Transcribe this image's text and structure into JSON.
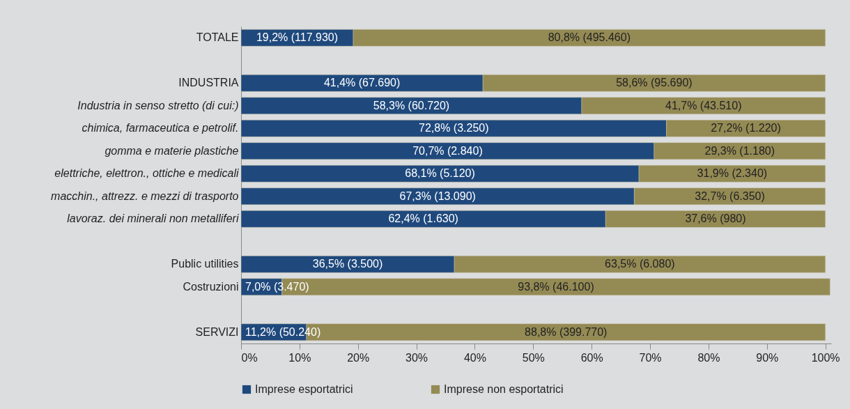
{
  "chart_data": {
    "type": "bar",
    "orientation": "horizontal",
    "stacked": true,
    "categories": [
      "TOTALE",
      null,
      "INDUSTRIA",
      "Industria in senso stretto (di cui:)",
      "chimica, farmaceutica e petrolif.",
      "gomma e materie plastiche",
      "elettriche, elettron., ottiche e medicali",
      "macchin., attrezz. e mezzi di trasporto",
      "lavoraz. dei minerali non metalliferi",
      null,
      "Public utilities",
      "Costruzioni",
      null,
      "SERVIZI"
    ],
    "series": [
      {
        "name": "Imprese esportatrici",
        "color": "#1f497d",
        "values": [
          19.2,
          null,
          41.4,
          58.3,
          72.8,
          70.7,
          68.1,
          67.3,
          62.4,
          null,
          36.5,
          7.0,
          null,
          11.2
        ],
        "value_labels": [
          "19,2% (117.930)",
          null,
          "41,4% (67.690)",
          "58,3% (60.720)",
          "72,8% (3.250)",
          "70,7% (2.840)",
          "68,1% (5.120)",
          "67,3% (13.090)",
          "62,4% (1.630)",
          null,
          "36,5% (3.500)",
          "7,0% (3.470)",
          null,
          "11,2% (50.240)"
        ]
      },
      {
        "name": "Imprese non esportatrici",
        "color": "#948a54",
        "values": [
          80.8,
          null,
          58.6,
          41.7,
          27.2,
          29.3,
          31.9,
          32.7,
          37.6,
          null,
          63.5,
          93.8,
          null,
          88.8
        ],
        "value_labels": [
          "80,8% (495.460)",
          null,
          "58,6% (95.690)",
          "41,7% (43.510)",
          "27,2% (1.220)",
          "29,3% (1.180)",
          "31,9% (2.340)",
          "32,7% (6.350)",
          "37,6% (980)",
          null,
          "63,5% (6.080)",
          "93,8% (46.100)",
          null,
          "88,8% (399.770)"
        ]
      }
    ],
    "xlim": [
      0,
      101
    ],
    "xticks": [
      {
        "value": 0,
        "label": "0%"
      },
      {
        "value": 10,
        "label": "10%"
      },
      {
        "value": 20,
        "label": "20%"
      },
      {
        "value": 30,
        "label": "30%"
      },
      {
        "value": 40,
        "label": "40%"
      },
      {
        "value": 50,
        "label": "50%"
      },
      {
        "value": 60,
        "label": "60%"
      },
      {
        "value": 70,
        "label": "70%"
      },
      {
        "value": 80,
        "label": "80%"
      },
      {
        "value": 90,
        "label": "90%"
      },
      {
        "value": 100,
        "label": "100%"
      }
    ],
    "legend": "bottom"
  }
}
